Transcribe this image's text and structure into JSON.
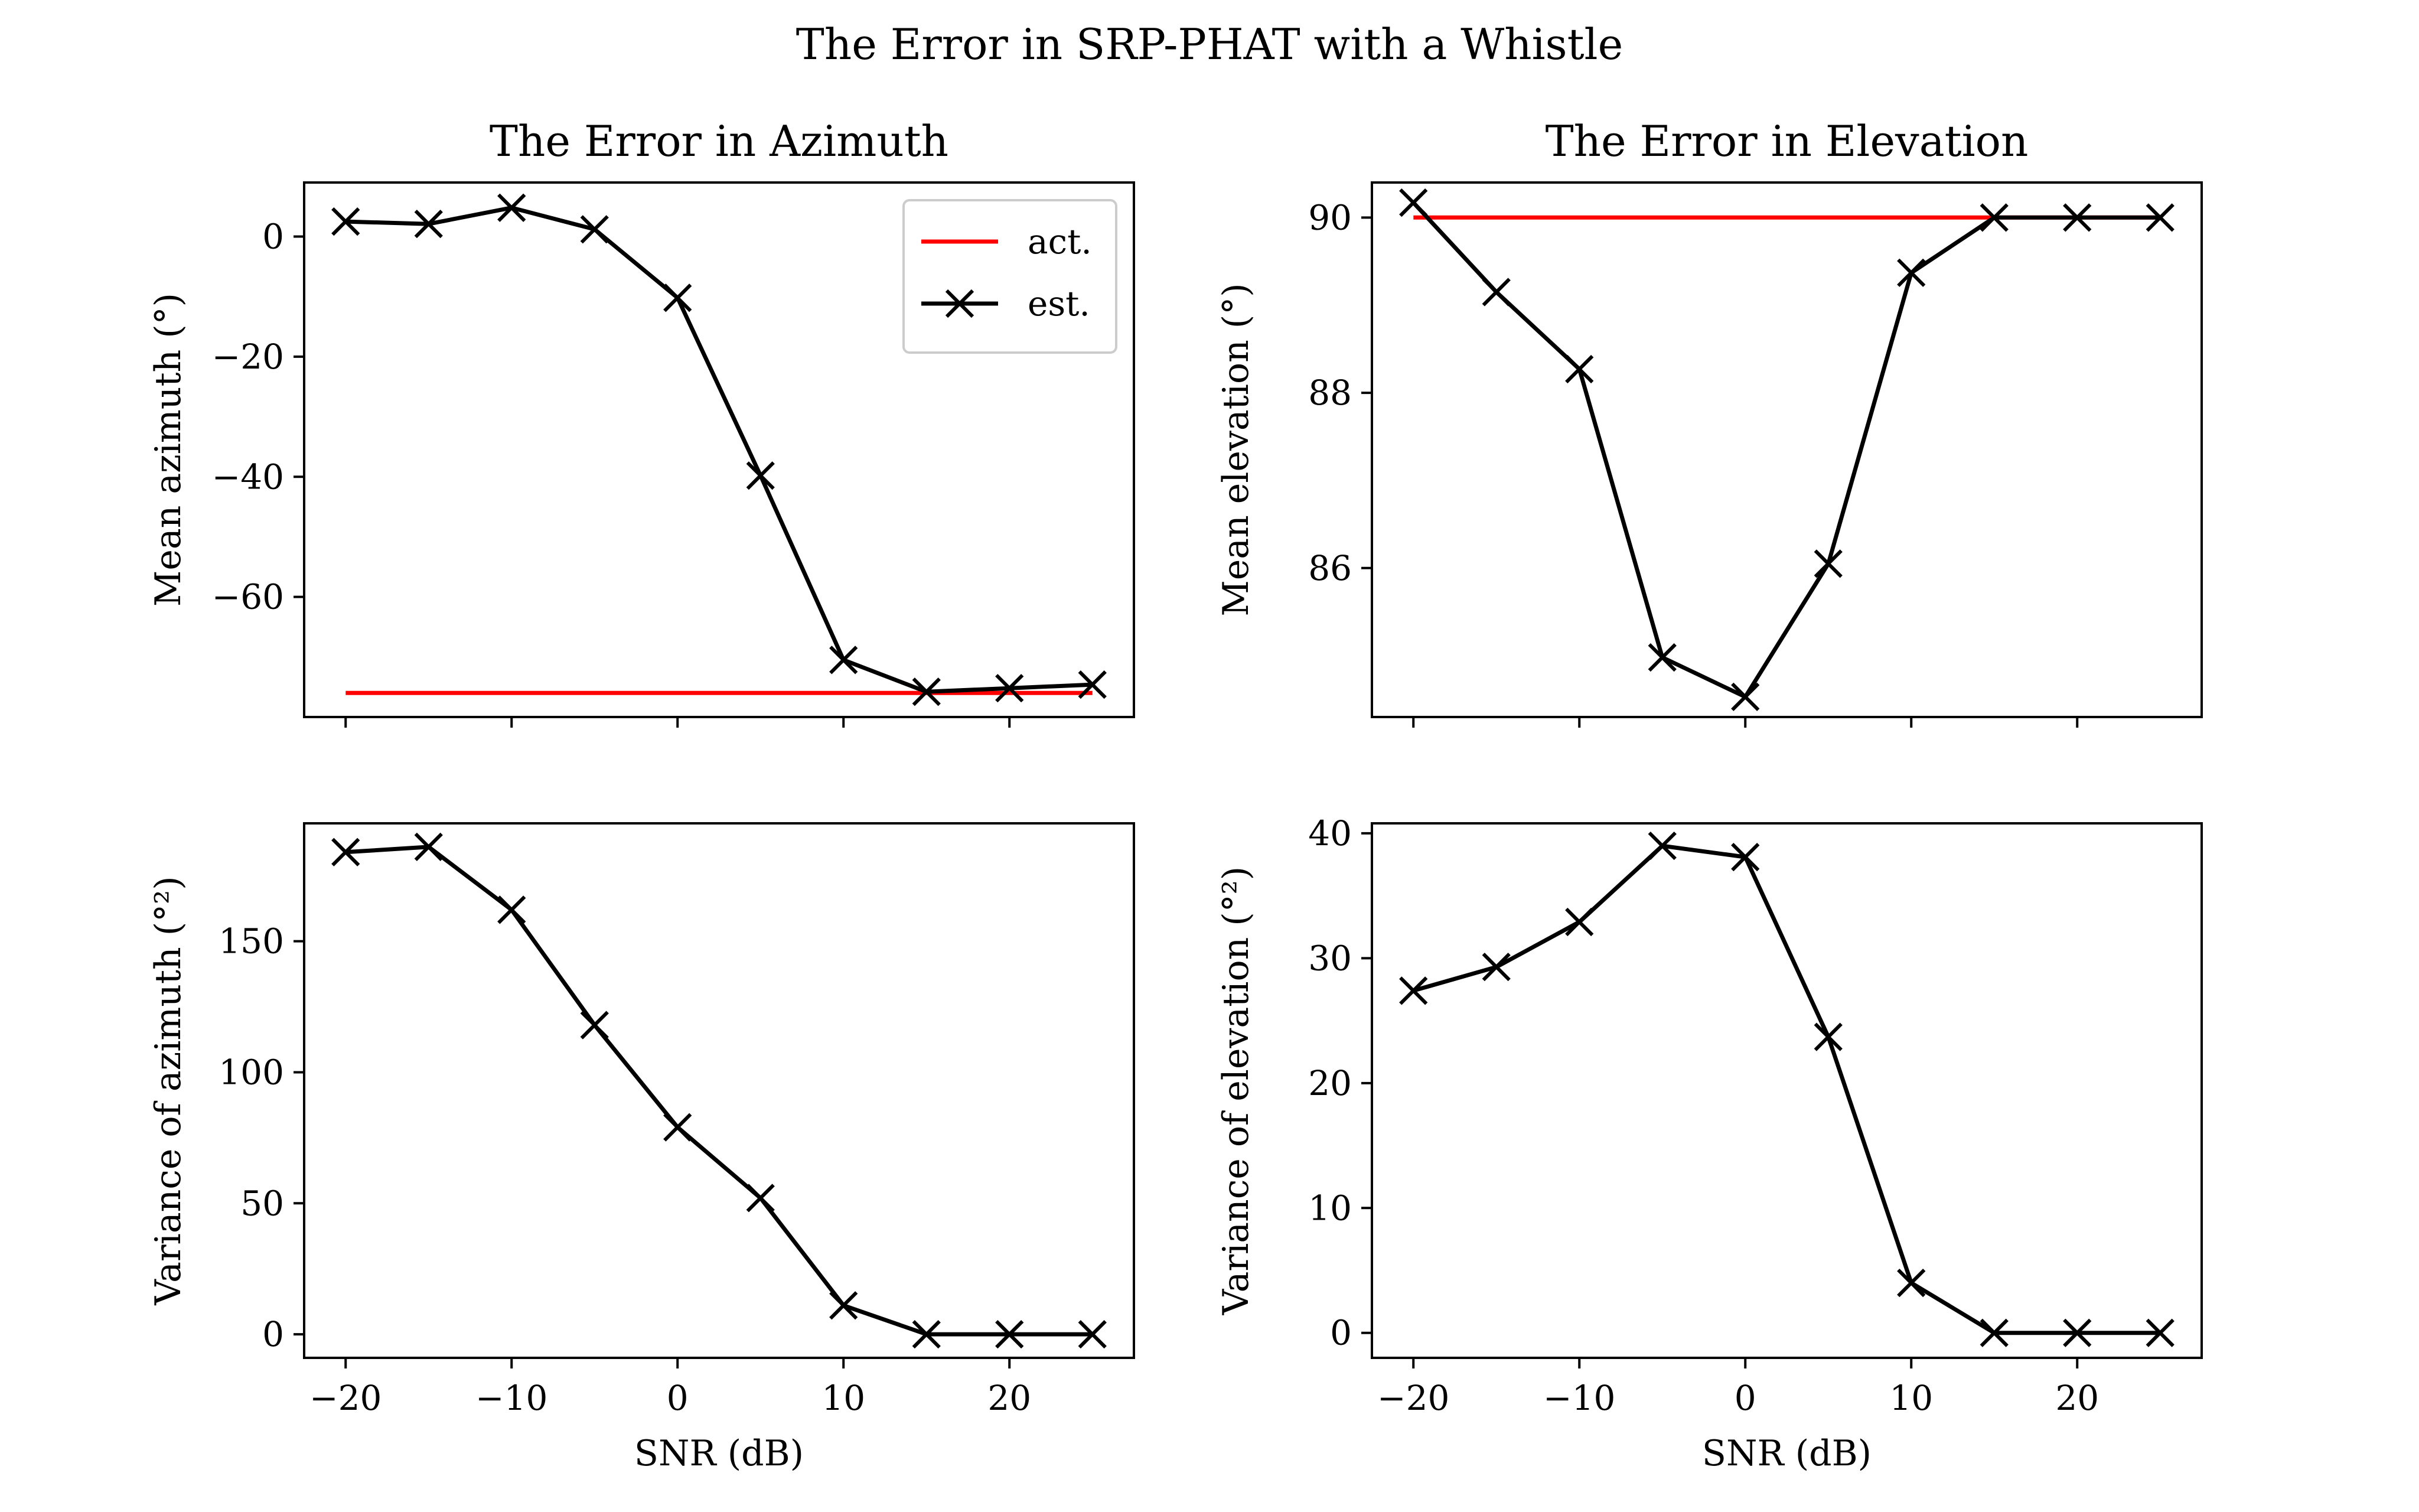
{
  "figure": {
    "suptitle": "The Error in SRP-PHAT with a Whistle"
  },
  "colors": {
    "actual_line": "#ff0000",
    "estimate_line": "#000000",
    "axes": "#000000",
    "background": "#ffffff"
  },
  "chart_data": [
    {
      "type": "line",
      "panel": "top-left",
      "title": "The Error in Azimuth",
      "xlabel": "",
      "ylabel": "Mean azimuth (°)",
      "xlim": [
        -22.5,
        27.5
      ],
      "ylim": [
        -80,
        9
      ],
      "xticks": [
        -20,
        -10,
        0,
        10,
        20
      ],
      "yticks": [
        0,
        -20,
        -40,
        -60
      ],
      "show_xticklabels": false,
      "grid": false,
      "legend": {
        "placement": "top-right",
        "entries": [
          "act.",
          "est."
        ]
      },
      "x": [
        -20,
        -15,
        -10,
        -5,
        0,
        5,
        10,
        15,
        20,
        25
      ],
      "series": [
        {
          "name": "act.",
          "color": "#ff0000",
          "marker": "none",
          "values": [
            -76,
            -76,
            -76,
            -76,
            -76,
            -76,
            -76,
            -76,
            -76,
            -76
          ]
        },
        {
          "name": "est.",
          "color": "#000000",
          "marker": "x",
          "values": [
            2.5,
            2.1,
            4.8,
            1.2,
            -10.2,
            -39.8,
            -70.5,
            -75.8,
            -75.2,
            -74.6
          ]
        }
      ]
    },
    {
      "type": "line",
      "panel": "top-right",
      "title": "The Error in Elevation",
      "xlabel": "",
      "ylabel": "Mean elevation (°)",
      "xlim": [
        -22.5,
        27.5
      ],
      "ylim": [
        84.3,
        90.4
      ],
      "xticks": [
        -20,
        -10,
        0,
        10,
        20
      ],
      "yticks": [
        90,
        88,
        86
      ],
      "show_xticklabels": false,
      "grid": false,
      "x": [
        -20,
        -15,
        -10,
        -5,
        0,
        5,
        10,
        15,
        20,
        25
      ],
      "series": [
        {
          "name": "act.",
          "color": "#ff0000",
          "marker": "none",
          "values": [
            90,
            90,
            90,
            90,
            90,
            90,
            90,
            90,
            90,
            90
          ]
        },
        {
          "name": "est.",
          "color": "#000000",
          "marker": "x",
          "values": [
            90.17,
            89.15,
            88.27,
            84.98,
            84.53,
            86.05,
            89.37,
            90.0,
            90.0,
            90.0
          ]
        }
      ]
    },
    {
      "type": "line",
      "panel": "bottom-left",
      "title": "",
      "xlabel": "SNR (dB)",
      "ylabel": "Variance of azimuth (°²)",
      "xlim": [
        -22.5,
        27.5
      ],
      "ylim": [
        -9,
        195
      ],
      "xticks": [
        -20,
        -10,
        0,
        10,
        20
      ],
      "yticks": [
        0,
        50,
        100,
        150
      ],
      "show_xticklabels": true,
      "grid": false,
      "x": [
        -20,
        -15,
        -10,
        -5,
        0,
        5,
        10,
        15,
        20,
        25
      ],
      "series": [
        {
          "name": "est.",
          "color": "#000000",
          "marker": "x",
          "values": [
            184,
            186,
            162,
            118,
            79,
            52,
            11,
            0,
            0,
            0
          ]
        }
      ]
    },
    {
      "type": "line",
      "panel": "bottom-right",
      "title": "",
      "xlabel": "SNR (dB)",
      "ylabel": "Variance of elevation (°²)",
      "xlim": [
        -22.5,
        27.5
      ],
      "ylim": [
        -2,
        40.8
      ],
      "xticks": [
        -20,
        -10,
        0,
        10,
        20
      ],
      "yticks": [
        0,
        10,
        20,
        30,
        40
      ],
      "show_xticklabels": true,
      "grid": false,
      "x": [
        -20,
        -15,
        -10,
        -5,
        0,
        5,
        10,
        15,
        20,
        25
      ],
      "series": [
        {
          "name": "est.",
          "color": "#000000",
          "marker": "x",
          "values": [
            27.4,
            29.3,
            32.9,
            39.0,
            38.1,
            23.7,
            4.0,
            0.0,
            0.0,
            0.0
          ]
        }
      ]
    }
  ]
}
